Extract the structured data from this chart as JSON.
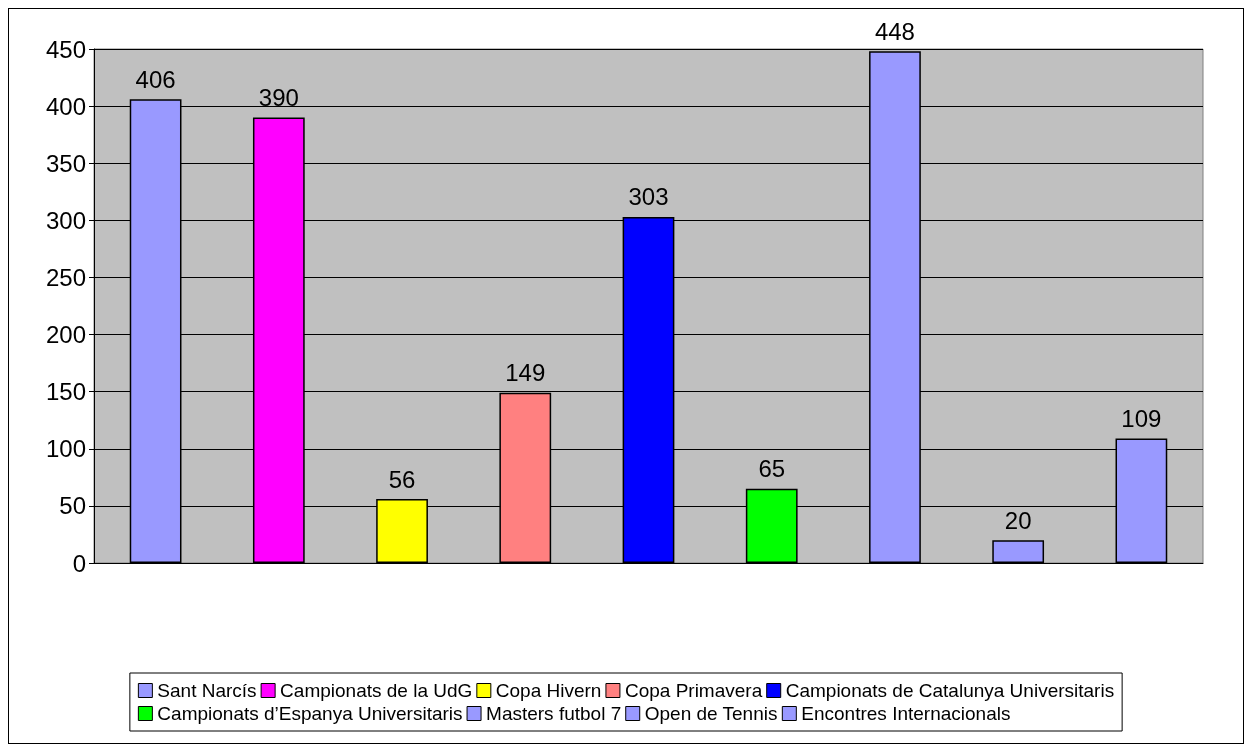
{
  "chart_data": {
    "type": "bar",
    "categories": [
      null,
      null,
      null,
      null,
      null,
      null,
      null,
      null,
      null
    ],
    "stacked": true,
    "series": [
      {
        "name": "Sant Narcís",
        "color": "#9999ff",
        "values": [
          406,
          null,
          null,
          null,
          null,
          null,
          null,
          null,
          null
        ]
      },
      {
        "name": "Campionats de la UdG",
        "color": "#ff00ff",
        "values": [
          null,
          390,
          null,
          null,
          null,
          null,
          null,
          null,
          null
        ]
      },
      {
        "name": "Copa Hivern",
        "color": "#ffff00",
        "values": [
          null,
          null,
          56,
          null,
          null,
          null,
          null,
          null,
          null
        ]
      },
      {
        "name": "Copa Primavera",
        "color": "#ff8080",
        "values": [
          null,
          null,
          null,
          149,
          null,
          null,
          null,
          null,
          null
        ]
      },
      {
        "name": "Campionats de Catalunya Universitaris",
        "color": "#0000ff",
        "values": [
          null,
          null,
          null,
          null,
          303,
          null,
          null,
          null,
          null
        ]
      },
      {
        "name": "Campionats d’Espanya Universitaris",
        "color": "#00ff00",
        "values": [
          null,
          null,
          null,
          null,
          null,
          65,
          null,
          null,
          null
        ]
      },
      {
        "name": "Masters futbol 7",
        "color": "#9999ff",
        "values": [
          null,
          null,
          null,
          null,
          null,
          null,
          448,
          null,
          null
        ]
      },
      {
        "name": "Open de Tennis",
        "color": "#9999ff",
        "values": [
          null,
          null,
          null,
          null,
          null,
          null,
          null,
          20,
          null
        ]
      },
      {
        "name": "Encontres Internacionals",
        "color": "#9999ff",
        "values": [
          null,
          null,
          null,
          null,
          null,
          null,
          null,
          null,
          109
        ]
      }
    ],
    "ylim": [
      0,
      450
    ],
    "yticks": [
      0,
      50,
      100,
      150,
      200,
      250,
      300,
      350,
      400,
      450
    ],
    "grid": "y",
    "data_labels": true,
    "legend": "bottom"
  }
}
